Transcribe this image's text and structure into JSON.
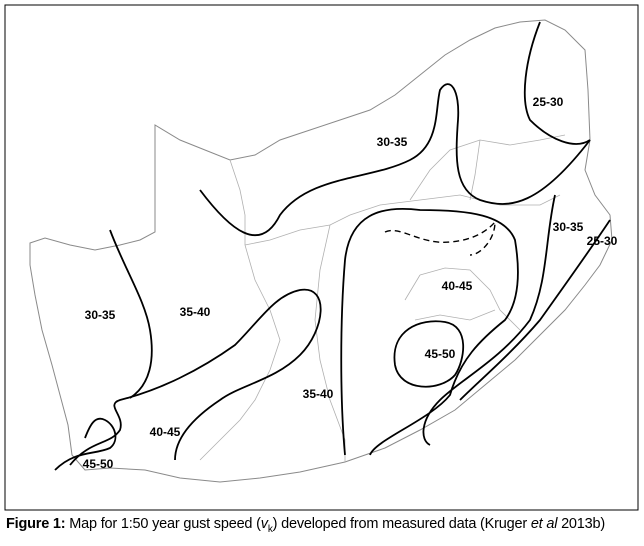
{
  "map": {
    "zone_labels": [
      "25-30",
      "30-35",
      "30-35",
      "25-30",
      "40-45",
      "35-40",
      "30-35",
      "45-50",
      "35-40",
      "40-45",
      "45-50"
    ]
  },
  "caption": {
    "label": "Figure 1:",
    "text_before": "Map for 1:50 year gust speed (",
    "symbol": "v",
    "subscript": "k",
    "text_middle": ") developed from measured data (Kruger ",
    "italic": "et al",
    "text_after": " 2013b)"
  }
}
